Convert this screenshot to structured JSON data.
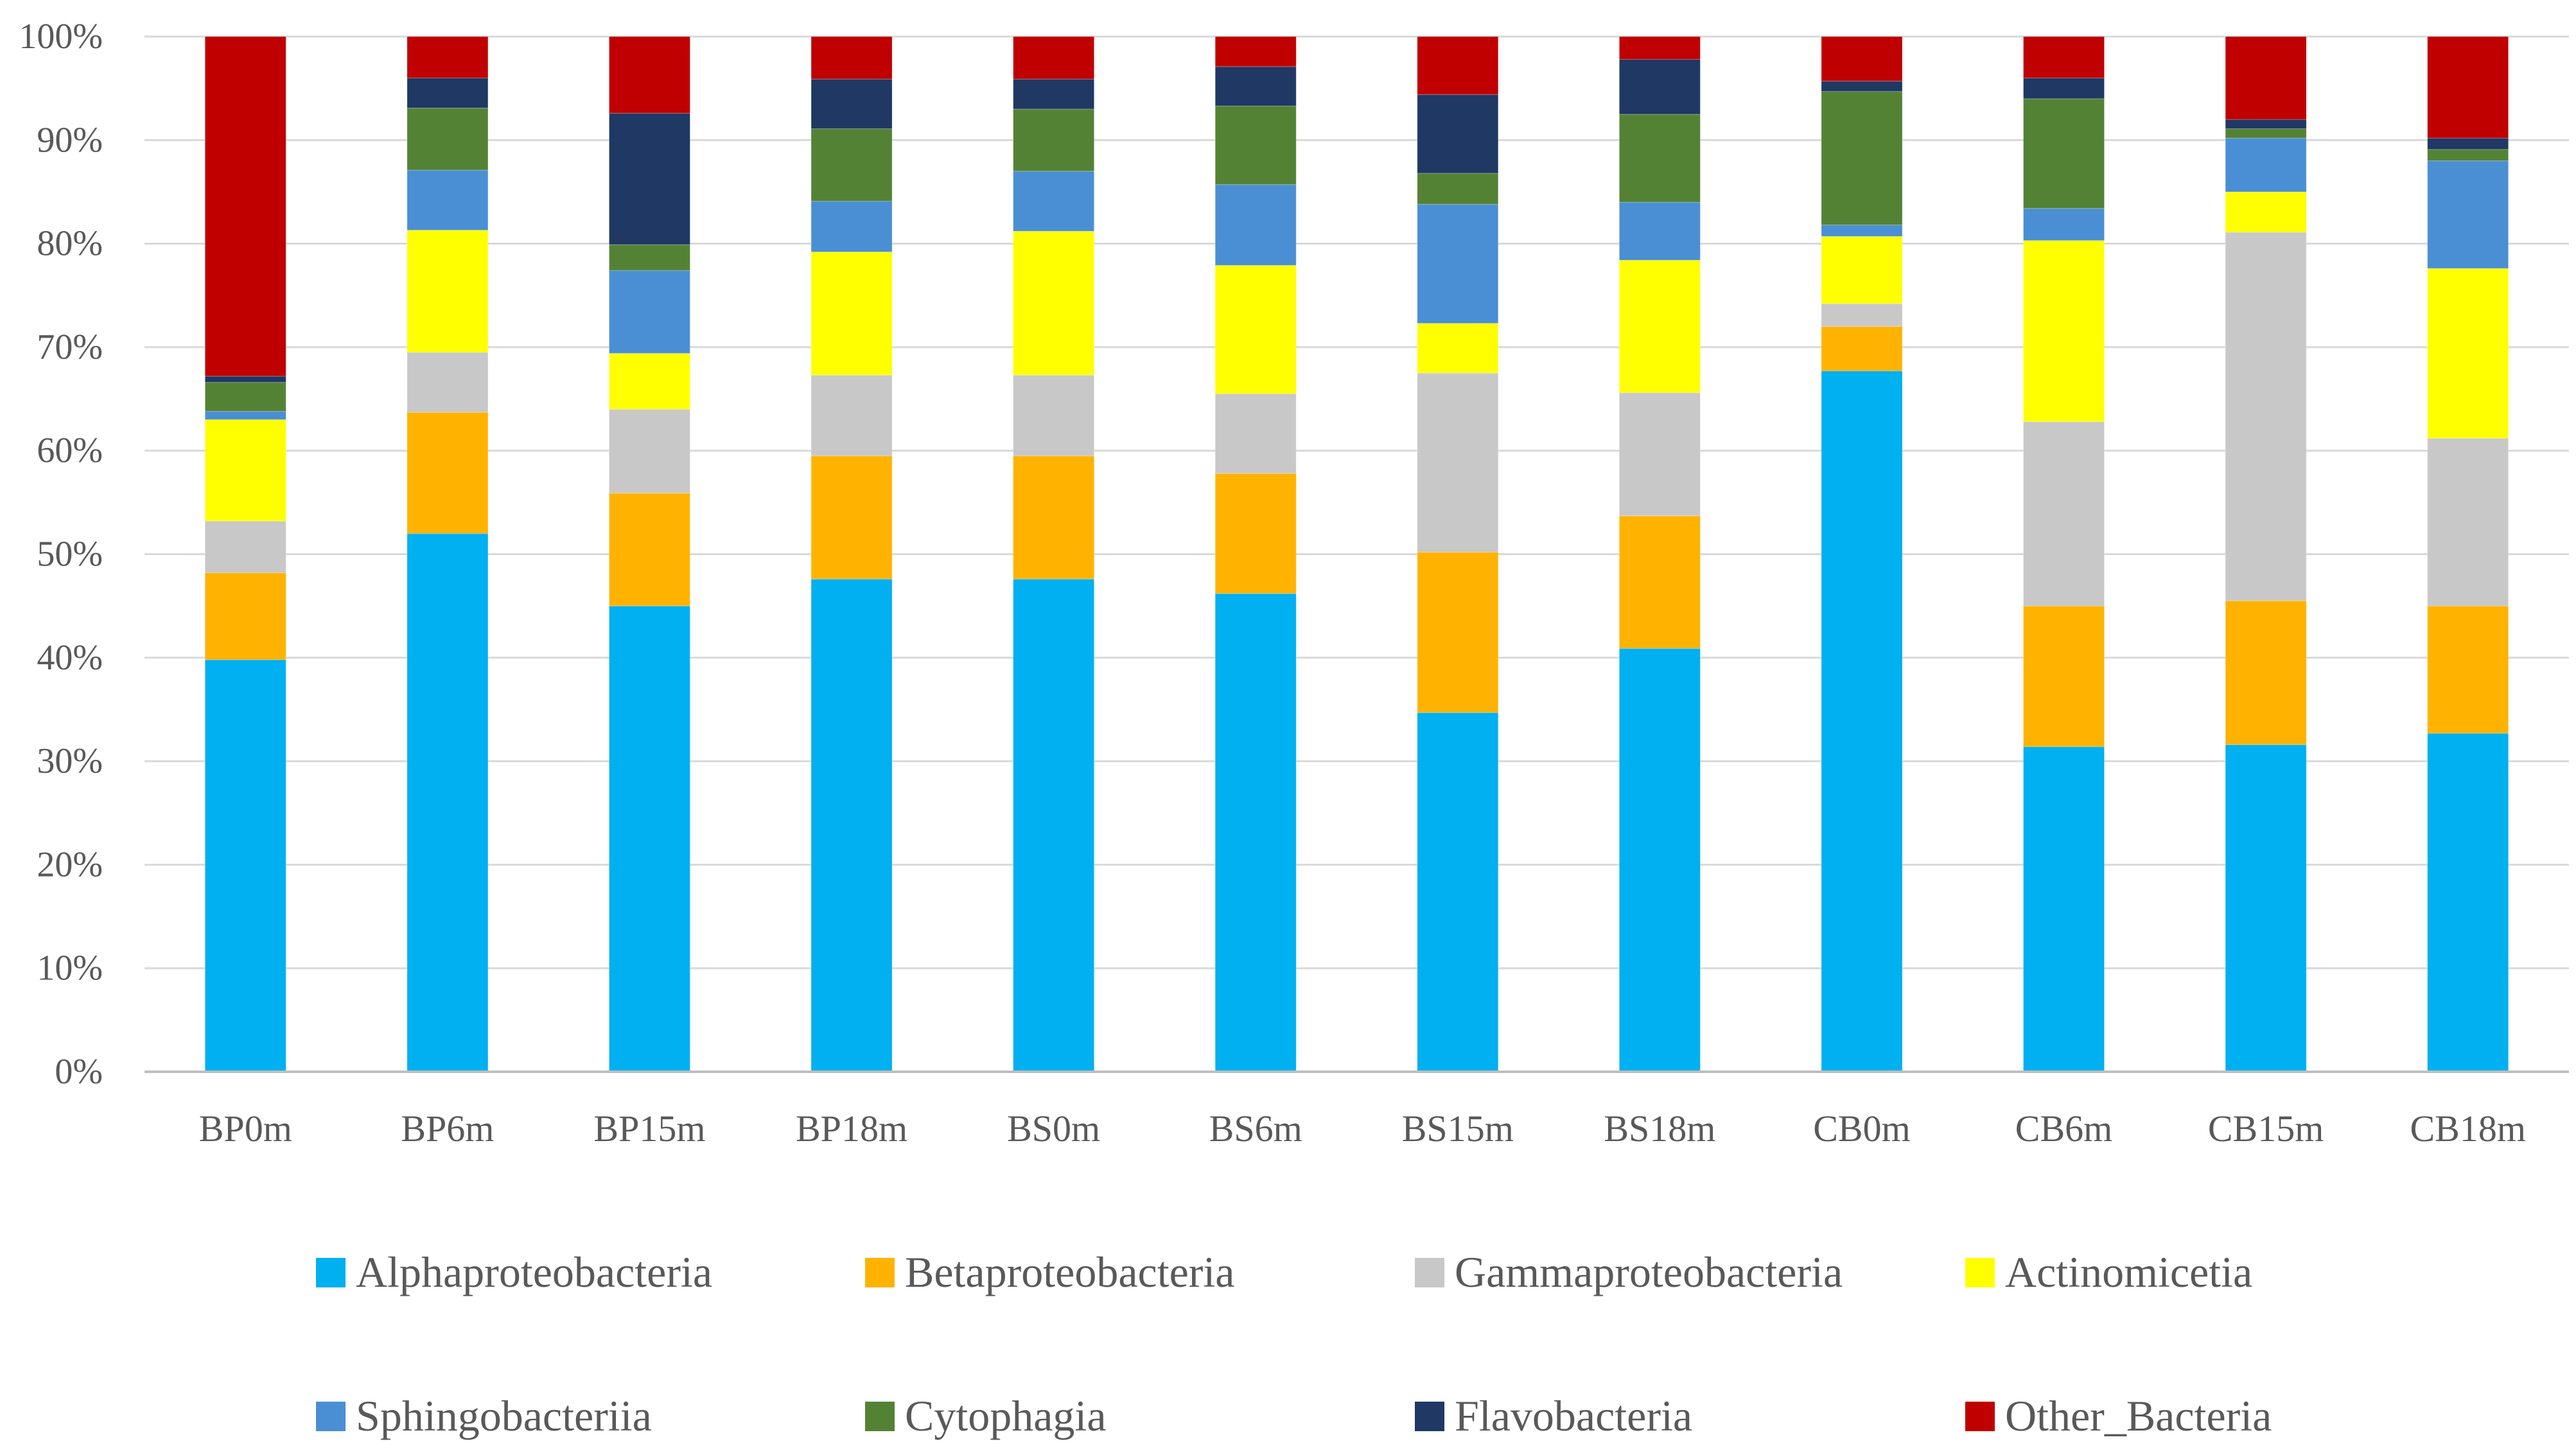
{
  "chart_data": {
    "type": "bar",
    "stacked": true,
    "title": "",
    "xlabel": "",
    "ylabel": "",
    "ylim": [
      0,
      100
    ],
    "ytick_labels": [
      "0%",
      "10%",
      "20%",
      "30%",
      "40%",
      "50%",
      "60%",
      "70%",
      "80%",
      "90%",
      "100%"
    ],
    "grid": true,
    "legend_position": "bottom",
    "categories": [
      "BP0m",
      "BP6m",
      "BP15m",
      "BP18m",
      "BS0m",
      "BS6m",
      "BS15m",
      "BS18m",
      "CB0m",
      "CB6m",
      "CB15m",
      "CB18m"
    ],
    "series": [
      {
        "name": "Alphaproteobacteria",
        "color": "#00B0F0",
        "values": [
          39.8,
          52.0,
          45.0,
          47.6,
          47.6,
          46.2,
          34.7,
          40.9,
          67.7,
          31.4,
          31.6,
          32.7
        ]
      },
      {
        "name": "Betaproteobacteria",
        "color": "#FFB300",
        "values": [
          8.4,
          11.7,
          10.9,
          11.9,
          11.9,
          11.6,
          15.5,
          12.8,
          4.3,
          13.6,
          13.9,
          12.3
        ]
      },
      {
        "name": "Gammaproteobacteria",
        "color": "#C8C8C8",
        "values": [
          5.0,
          5.8,
          8.1,
          7.8,
          7.8,
          7.7,
          17.3,
          11.9,
          2.2,
          17.8,
          35.6,
          16.2
        ]
      },
      {
        "name": "Actinomicetia",
        "color": "#FFFF00",
        "values": [
          9.8,
          11.8,
          5.4,
          11.9,
          13.9,
          12.4,
          4.8,
          12.8,
          6.5,
          17.5,
          3.9,
          16.4
        ]
      },
      {
        "name": "Sphingobacteriia",
        "color": "#4A8FD4",
        "values": [
          0.8,
          5.8,
          8.0,
          4.9,
          5.8,
          7.8,
          11.5,
          5.6,
          1.1,
          3.1,
          5.2,
          10.4
        ]
      },
      {
        "name": "Cytophagia",
        "color": "#548235",
        "values": [
          2.8,
          6.0,
          2.5,
          7.0,
          6.0,
          7.6,
          3.0,
          8.5,
          12.9,
          10.6,
          0.9,
          1.1
        ]
      },
      {
        "name": "Flavobacteria",
        "color": "#1F3864",
        "values": [
          0.6,
          2.9,
          12.7,
          4.8,
          2.9,
          3.8,
          7.6,
          5.3,
          1.0,
          2.0,
          0.9,
          1.1
        ]
      },
      {
        "name": "Other_Bacteria",
        "color": "#C00000",
        "values": [
          32.8,
          4.0,
          7.4,
          4.1,
          4.1,
          2.9,
          5.6,
          2.2,
          4.3,
          4.0,
          8.0,
          9.8
        ]
      }
    ]
  }
}
